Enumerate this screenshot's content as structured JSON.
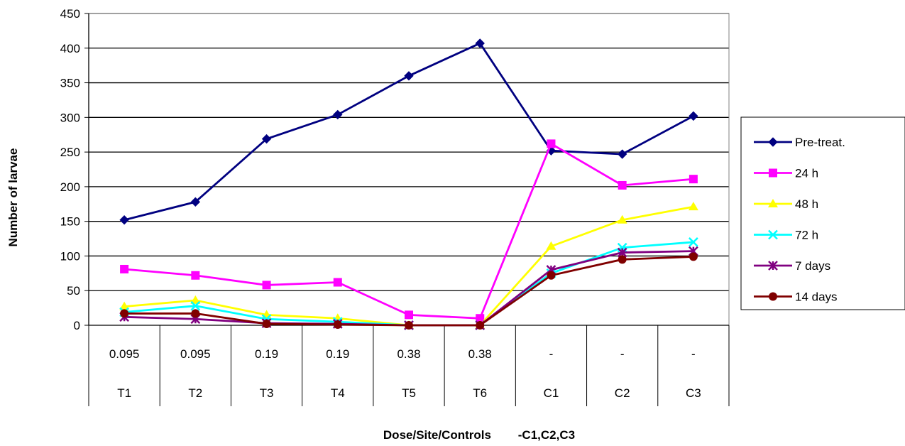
{
  "chart_data": {
    "type": "line",
    "categories": [
      "T1",
      "T2",
      "T3",
      "T4",
      "T5",
      "T6",
      "C1",
      "C2",
      "C3"
    ],
    "doses": [
      "0.095",
      "0.095",
      "0.19",
      "0.19",
      "0.38",
      "0.38",
      "-",
      "-",
      "-"
    ],
    "xlabel": "Dose/Site/Controls        -C1,C2,C3",
    "ylabel": "Number of larvae",
    "ylim": [
      0,
      450
    ],
    "yticks": [
      0,
      50,
      100,
      150,
      200,
      250,
      300,
      350,
      400,
      450
    ],
    "grid": true,
    "legend_position": "right",
    "series": [
      {
        "name": "Pre-treat.",
        "color": "#000080",
        "marker": "diamond",
        "values": [
          152,
          178,
          269,
          304,
          360,
          407,
          252,
          247,
          302
        ]
      },
      {
        "name": "24 h",
        "color": "#FF00FF",
        "marker": "square",
        "values": [
          81,
          72,
          58,
          62,
          15,
          10,
          262,
          202,
          211
        ]
      },
      {
        "name": "48 h",
        "color": "#FFFF00",
        "marker": "triangle",
        "values": [
          27,
          36,
          15,
          10,
          0,
          0,
          114,
          152,
          171
        ]
      },
      {
        "name": "72 h",
        "color": "#00FFFF",
        "marker": "x",
        "values": [
          19,
          28,
          9,
          5,
          0,
          0,
          75,
          112,
          120
        ]
      },
      {
        "name": "7 days",
        "color": "#800080",
        "marker": "star",
        "values": [
          12,
          9,
          3,
          2,
          0,
          0,
          80,
          105,
          107
        ]
      },
      {
        "name": "14 days",
        "color": "#800000",
        "marker": "circle",
        "values": [
          17,
          17,
          2,
          1,
          0,
          0,
          72,
          95,
          99
        ]
      }
    ]
  }
}
